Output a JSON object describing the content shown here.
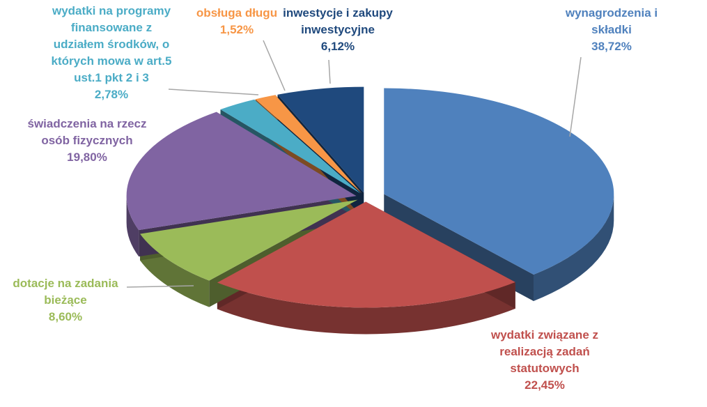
{
  "chart_data": {
    "type": "pie",
    "title": "",
    "slices": [
      {
        "label": [
          "wynagrodzenia i",
          "składki"
        ],
        "value_text": "38,72%",
        "value": 38.72,
        "color": "#4f81bd"
      },
      {
        "label": [
          "wydatki związane z",
          "realizacją zadań",
          "statutowych"
        ],
        "value_text": "22,45%",
        "value": 22.45,
        "color": "#c0504d"
      },
      {
        "label": [
          "dotacje na zadania",
          "bieżące"
        ],
        "value_text": "8,60%",
        "value": 8.6,
        "color": "#9bbb59"
      },
      {
        "label": [
          "świadczenia na rzecz",
          "osób fizycznych"
        ],
        "value_text": "19,80%",
        "value": 19.8,
        "color": "#8064a2"
      },
      {
        "label": [
          "wydatki na programy",
          "finansowane z",
          "udziałem środków, o",
          "których mowa w art.5",
          "ust.1 pkt 2 i 3"
        ],
        "value_text": "2,78%",
        "value": 2.78,
        "color": "#4bacc6"
      },
      {
        "label": [
          "obsługa długu"
        ],
        "value_text": "1,52%",
        "value": 1.52,
        "color": "#f79646"
      },
      {
        "label": [
          "inwestycje i zakupy",
          "inwestycyjne"
        ],
        "value_text": "6,12%",
        "value": 6.12,
        "color": "#1f497d"
      }
    ]
  }
}
